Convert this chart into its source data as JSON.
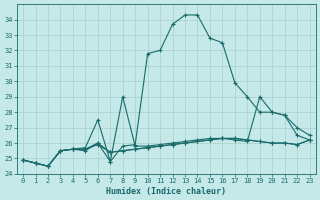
{
  "xlabel": "Humidex (Indice chaleur)",
  "bg_color": "#c5e8e8",
  "grid_color": "#aacece",
  "line_color": "#1a6b6b",
  "xlim_min": -0.5,
  "xlim_max": 23.5,
  "ylim_min": 24,
  "ylim_max": 35,
  "yticks": [
    24,
    25,
    26,
    27,
    28,
    29,
    30,
    31,
    32,
    33,
    34
  ],
  "xticks": [
    0,
    1,
    2,
    3,
    4,
    5,
    6,
    7,
    8,
    9,
    10,
    11,
    12,
    13,
    14,
    15,
    16,
    17,
    18,
    19,
    20,
    21,
    22,
    23
  ],
  "x": [
    0,
    1,
    2,
    3,
    4,
    5,
    6,
    7,
    8,
    9,
    10,
    11,
    12,
    13,
    14,
    15,
    16,
    17,
    18,
    19,
    20,
    21,
    22,
    23
  ],
  "y_main": [
    24.9,
    24.7,
    24.5,
    25.5,
    25.6,
    25.5,
    26.0,
    24.8,
    25.8,
    25.9,
    31.8,
    32.0,
    33.7,
    34.3,
    34.3,
    32.8,
    32.5,
    29.9,
    29.0,
    28.0,
    28.0,
    27.8,
    27.0,
    26.5
  ],
  "y_mid": [
    24.9,
    24.7,
    24.5,
    25.5,
    25.6,
    25.7,
    27.5,
    24.8,
    29.0,
    25.8,
    25.8,
    25.9,
    26.0,
    26.1,
    26.2,
    26.3,
    26.3,
    26.2,
    26.1,
    29.0,
    28.0,
    27.8,
    26.5,
    26.2
  ],
  "y_flat1": [
    24.9,
    24.7,
    24.5,
    25.5,
    25.6,
    25.6,
    26.0,
    25.4,
    25.5,
    25.6,
    25.7,
    25.8,
    25.9,
    26.0,
    26.1,
    26.2,
    26.3,
    26.3,
    26.2,
    26.1,
    26.0,
    26.0,
    25.9,
    26.2
  ],
  "y_flat2": [
    24.9,
    24.7,
    24.5,
    25.5,
    25.6,
    25.6,
    25.9,
    25.4,
    25.5,
    25.6,
    25.7,
    25.8,
    25.9,
    26.0,
    26.1,
    26.2,
    26.3,
    26.3,
    26.2,
    26.1,
    26.0,
    26.0,
    25.9,
    26.2
  ]
}
